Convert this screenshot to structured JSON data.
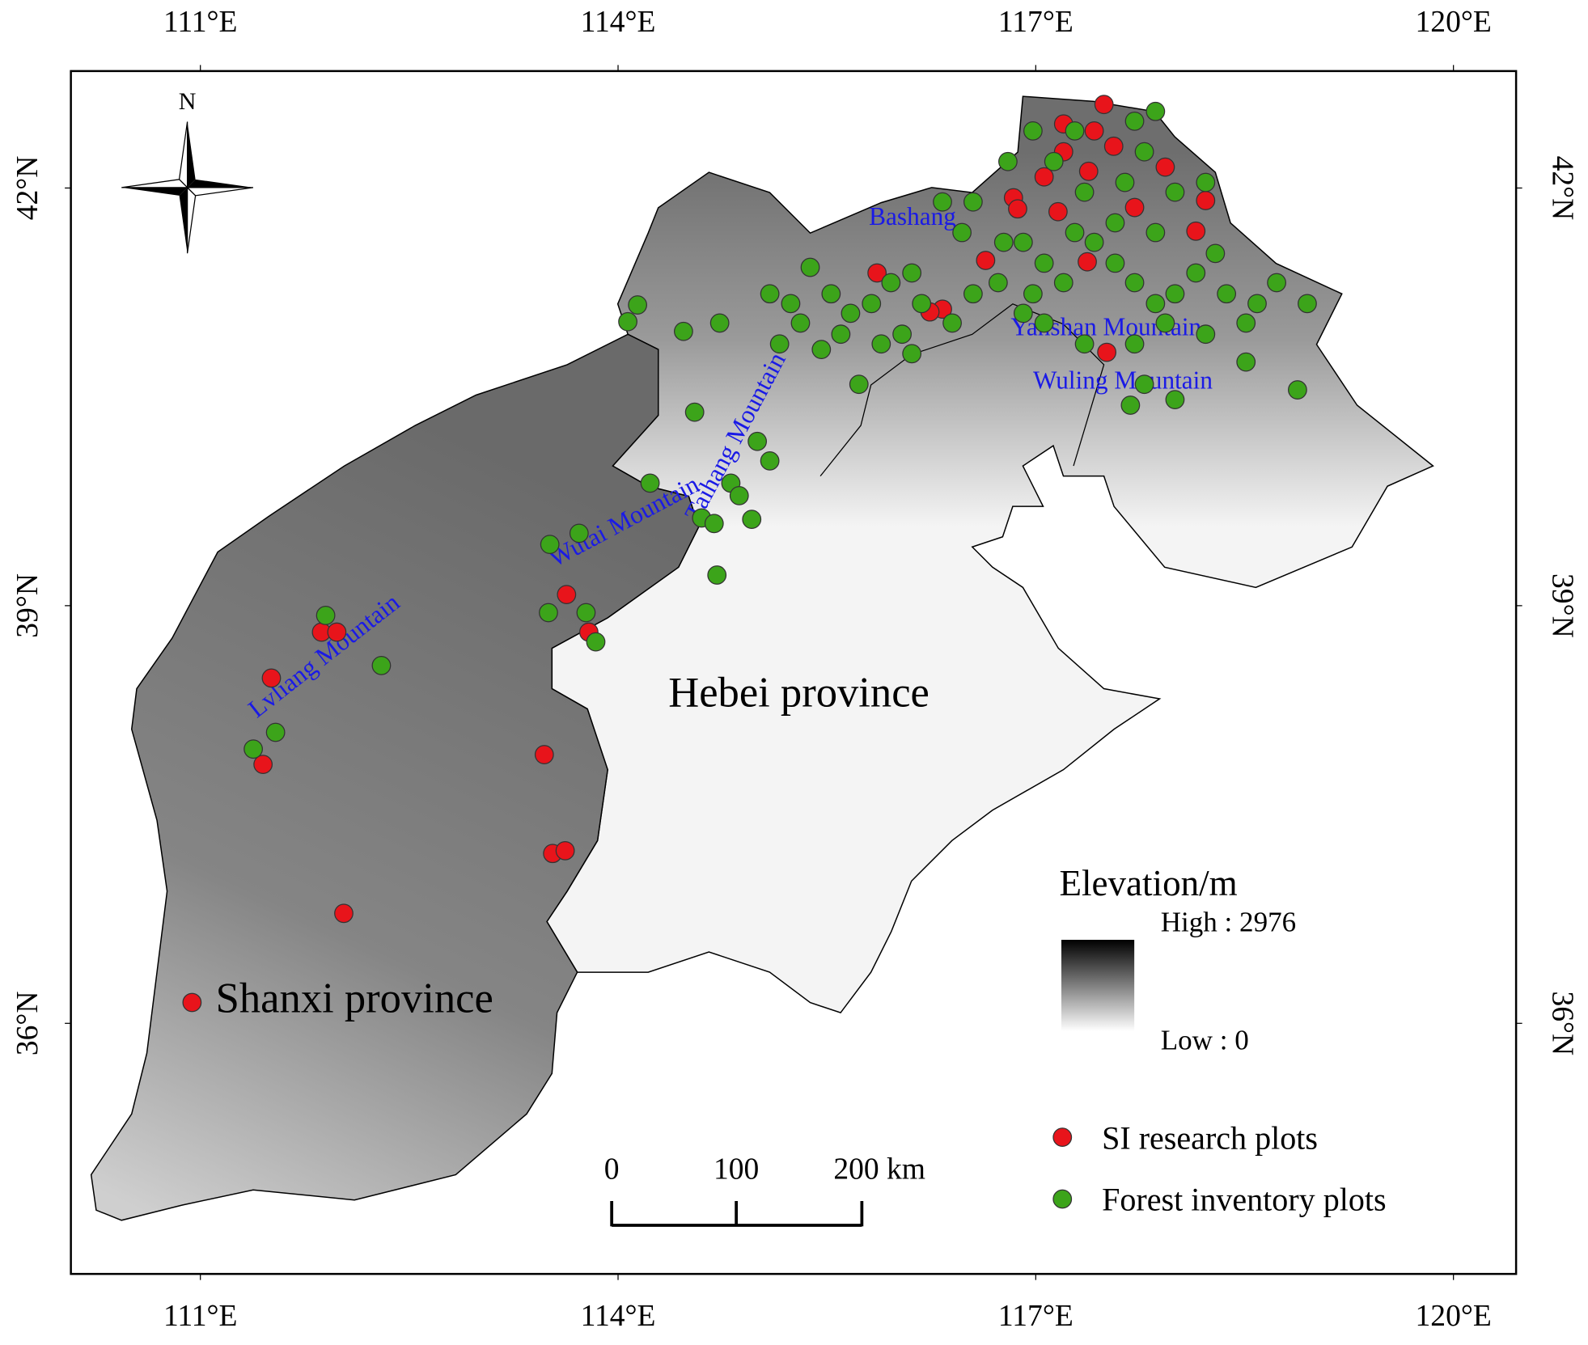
{
  "map": {
    "xlim": [
      110.07,
      120.45
    ],
    "ylim": [
      34.2,
      42.84
    ],
    "xticks": [
      {
        "value": 111,
        "label": "111°E"
      },
      {
        "value": 114,
        "label": "114°E"
      },
      {
        "value": 117,
        "label": "117°E"
      },
      {
        "value": 120,
        "label": "120°E"
      }
    ],
    "yticks": [
      {
        "value": 36,
        "label": "36°N"
      },
      {
        "value": 39,
        "label": "39°N"
      },
      {
        "value": 42,
        "label": "42°N"
      }
    ],
    "north": "N",
    "provinces": [
      "Hebei province",
      "Shanxi province"
    ],
    "mountains": [
      "Bashang",
      "Yanshan Mountain",
      "Wuling Mountain",
      "Taihang Mountain",
      "Wutai Mountain",
      "Lvliang Mountain"
    ],
    "legend": {
      "title": "Elevation/m",
      "high": "High : 2976",
      "low": "Low : 0"
    },
    "scale": [
      "0",
      "100",
      "200 km"
    ],
    "series": [
      {
        "name": "SI research plots",
        "color": "#e8141b",
        "lon": [
          110.94,
          112.03,
          113.53,
          113.62,
          113.47,
          111.45,
          111.51,
          111.87,
          111.98,
          113.63,
          113.79,
          117.51,
          116.33,
          116.24,
          115.86,
          116.64,
          117.37,
          117.71,
          117.16,
          116.84,
          117.06,
          117.2,
          117.38,
          117.93,
          118.15,
          118.22,
          117.42,
          117.56,
          117.2,
          117.49,
          116.87
        ],
        "lat": [
          36.15,
          36.79,
          37.22,
          37.24,
          37.93,
          37.86,
          38.48,
          38.81,
          38.81,
          39.08,
          38.81,
          40.82,
          41.13,
          41.11,
          41.39,
          41.48,
          41.47,
          41.86,
          41.83,
          41.93,
          42.08,
          42.26,
          42.12,
          42.15,
          41.69,
          41.91,
          42.41,
          42.3,
          42.46,
          42.6,
          41.85
        ]
      },
      {
        "name": "Forest inventory plots",
        "color": "#3ca41a",
        "lon": [
          111.9,
          112.3,
          111.54,
          111.38,
          113.51,
          113.72,
          113.5,
          113.77,
          113.84,
          114.23,
          114.55,
          115.0,
          115.09,
          114.81,
          114.87,
          114.96,
          114.6,
          114.69,
          114.71,
          114.14,
          114.07,
          114.47,
          114.73,
          115.73,
          115.09,
          115.24,
          115.38,
          115.53,
          115.67,
          115.82,
          115.96,
          116.11,
          116.18,
          116.04,
          115.89,
          115.6,
          115.31,
          115.16,
          115.46,
          116.11,
          116.4,
          116.55,
          116.73,
          116.77,
          116.47,
          116.33,
          116.55,
          116.91,
          117.06,
          117.2,
          116.98,
          117.28,
          117.42,
          117.57,
          117.71,
          117.86,
          118.0,
          118.15,
          118.29,
          118.37,
          118.59,
          118.73,
          118.95,
          118.51,
          118.22,
          117.93,
          117.71,
          117.35,
          117.78,
          118.0,
          117.68,
          118.51,
          118.88,
          117.13,
          117.35,
          117.64,
          117.78,
          118.0,
          118.22,
          117.86,
          117.57,
          117.28,
          116.98,
          117.71,
          117.86,
          116.8,
          117.06,
          116.91
        ],
        "lat": [
          38.93,
          38.57,
          38.09,
          37.97,
          39.44,
          39.52,
          38.95,
          38.95,
          38.74,
          39.88,
          40.39,
          40.18,
          40.04,
          39.88,
          39.79,
          39.62,
          39.63,
          39.59,
          39.22,
          41.16,
          41.04,
          40.97,
          41.03,
          40.59,
          41.24,
          41.17,
          41.43,
          41.24,
          41.1,
          41.17,
          41.32,
          41.39,
          41.17,
          40.95,
          40.88,
          40.95,
          41.03,
          40.88,
          40.84,
          40.81,
          41.03,
          41.24,
          41.32,
          41.61,
          41.68,
          41.9,
          41.9,
          41.61,
          41.46,
          41.32,
          41.24,
          41.68,
          41.61,
          41.46,
          41.32,
          41.17,
          41.24,
          41.39,
          41.53,
          41.24,
          41.17,
          41.32,
          41.17,
          41.03,
          40.95,
          41.03,
          40.88,
          40.88,
          40.59,
          40.48,
          40.44,
          40.75,
          40.55,
          42.19,
          41.97,
          42.04,
          42.26,
          41.97,
          42.04,
          41.68,
          41.75,
          42.41,
          42.41,
          42.48,
          42.55,
          42.19,
          41.03,
          41.1
        ]
      }
    ]
  }
}
